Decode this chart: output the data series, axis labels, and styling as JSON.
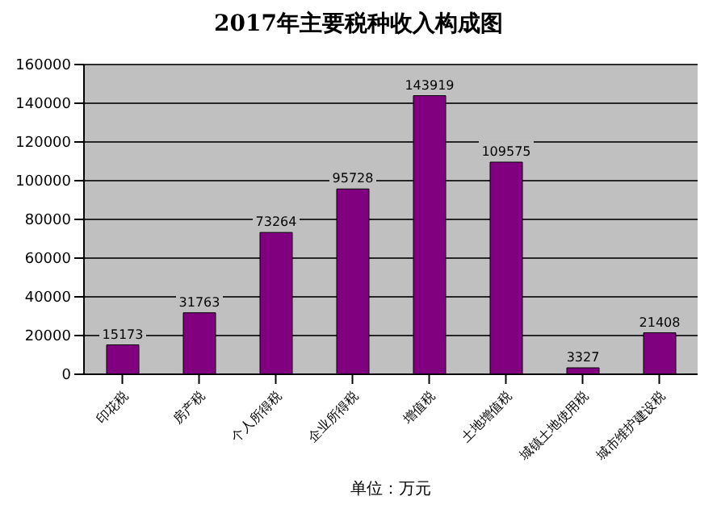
{
  "chart_data": {
    "type": "bar",
    "title": "2017年主要税种收入构成图",
    "categories": [
      "印花税",
      "房产税",
      "个人所得税",
      "企业所得税",
      "增值税",
      "土地增值税",
      "城镇土地使用税",
      "城市维护建设税"
    ],
    "values": [
      15173,
      31763,
      73264,
      95728,
      143919,
      109575,
      3327,
      21408
    ],
    "color": "#800080",
    "ylim": [
      0,
      160000
    ],
    "yticks": [
      0,
      20000,
      40000,
      60000,
      80000,
      100000,
      120000,
      140000,
      160000
    ],
    "grid": "y",
    "data_labels": true,
    "annotations": [
      "单位：万元"
    ]
  }
}
